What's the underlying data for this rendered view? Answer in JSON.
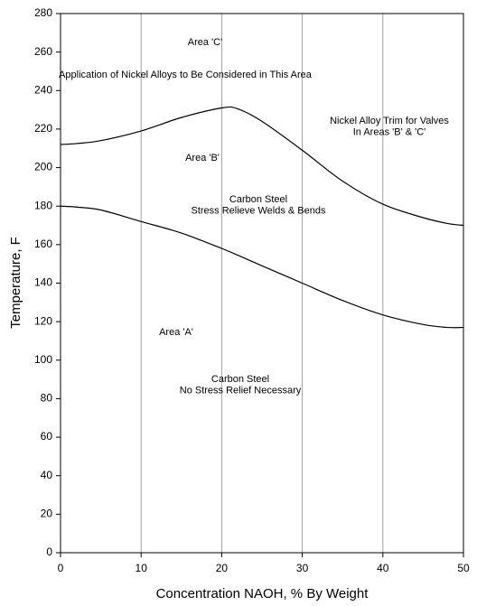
{
  "chart_data": {
    "type": "line",
    "x_label": "Concentration NAOH, % By Weight",
    "y_label": "Temperature, F",
    "x": [
      0,
      2,
      5,
      10,
      15,
      20,
      22,
      25,
      30,
      35,
      40,
      45,
      48,
      50
    ],
    "series": [
      {
        "color": "#000000",
        "values": [
          212,
          212.5,
          214,
          219,
          226,
          231,
          230.5,
          224,
          209,
          193,
          181,
          174,
          171,
          170
        ]
      },
      {
        "color": "#000000",
        "values": [
          180,
          179.5,
          178,
          172,
          166,
          158,
          154.5,
          149,
          140,
          131,
          123.5,
          118.5,
          117,
          117
        ]
      }
    ],
    "xlim": [
      0,
      50
    ],
    "xticks": [
      0,
      10,
      20,
      30,
      40,
      50
    ],
    "ylim": [
      0,
      280
    ],
    "yticks": [
      0,
      20,
      40,
      60,
      80,
      100,
      120,
      140,
      160,
      180,
      200,
      220,
      240,
      260,
      280
    ],
    "grid": "x",
    "annotations": [
      [
        "Area 'C'"
      ],
      [
        "Application of Nickel Alloys to Be Considered in This Area"
      ],
      [
        "Nickel Alloy Trim for Valves",
        "In Areas 'B' & 'C'"
      ],
      [
        "Area 'B'"
      ],
      [
        "Carbon Steel",
        "Stress Relieve Welds & Bends"
      ],
      [
        "Area 'A'"
      ],
      [
        "Carbon Steel",
        "No Stress Relief Necessary"
      ]
    ]
  }
}
